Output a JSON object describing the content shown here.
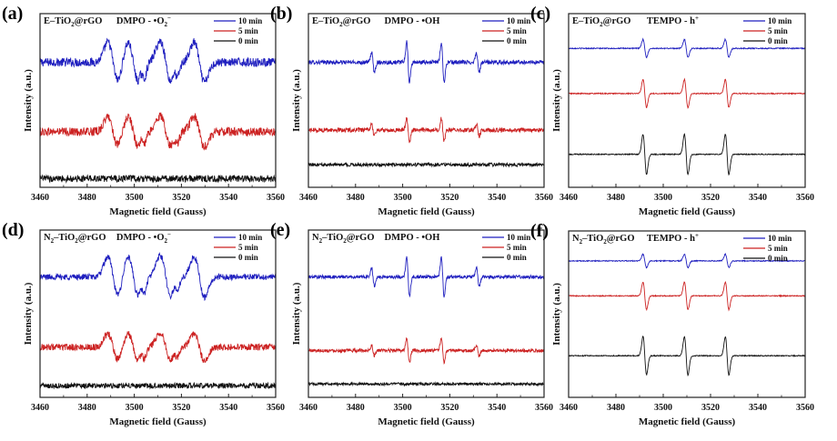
{
  "figure": {
    "panels": [
      "a",
      "b",
      "c",
      "d",
      "e",
      "f"
    ]
  },
  "chart_data": [
    {
      "id": "a",
      "type": "line",
      "panel_label": "(a)",
      "sample": {
        "prefix": "E",
        "formula_main": "TiO",
        "formula_sub": "2",
        "suffix": "@rGO"
      },
      "probe": {
        "text": "DMPO - •O",
        "sub": "2",
        "sup": "−"
      },
      "xlabel": "Magnetic field (Gauss)",
      "ylabel": "Intensity (a.u.)",
      "xlim": [
        3460,
        3560
      ],
      "xticks": [
        3460,
        3480,
        3500,
        3520,
        3540,
        3560
      ],
      "yticks_shown": false,
      "legend": {
        "position": "top-right",
        "entries": [
          "10 min",
          "5 min",
          "0 min"
        ]
      },
      "spectrum_type": "DMPO-superoxide",
      "series": [
        {
          "name": "10 min",
          "color": "#1f1fbf",
          "baseline_offset": 0.72,
          "amplitude": 1.0,
          "noise": 0.025,
          "peaks": [
            3490.8,
            3494.8,
            3500.0,
            3504.4,
            3513.6,
            3518.0,
            3527.4,
            3529.6
          ]
        },
        {
          "name": "5 min",
          "color": "#cc2222",
          "baseline_offset": 0.32,
          "amplitude": 0.75,
          "noise": 0.025,
          "peaks": [
            3490.8,
            3494.8,
            3500.0,
            3504.4,
            3513.6,
            3518.0,
            3527.4,
            3529.6
          ]
        },
        {
          "name": "0 min",
          "color": "#111111",
          "baseline_offset": 0.05,
          "amplitude": 0.0,
          "noise": 0.02,
          "peaks": []
        }
      ]
    },
    {
      "id": "b",
      "type": "line",
      "panel_label": "(b)",
      "sample": {
        "prefix": "E",
        "formula_main": "TiO",
        "formula_sub": "2",
        "suffix": "@rGO"
      },
      "probe": {
        "text": "DMPO - •OH",
        "sub": "",
        "sup": ""
      },
      "xlabel": "Magnetic field (Gauss)",
      "ylabel": "Intensity (a.u.)",
      "xlim": [
        3460,
        3560
      ],
      "xticks": [
        3460,
        3480,
        3500,
        3520,
        3540,
        3560
      ],
      "yticks_shown": false,
      "legend": {
        "position": "top-right",
        "entries": [
          "10 min",
          "5 min",
          "0 min"
        ]
      },
      "spectrum_type": "DMPO-OH",
      "series": [
        {
          "name": "10 min",
          "color": "#1f1fbf",
          "baseline_offset": 0.72,
          "amplitude": 1.0,
          "noise": 0.012,
          "lines": [
            [
              3487.4,
              0.5
            ],
            [
              3502.3,
              1.0
            ],
            [
              3517.0,
              1.0
            ],
            [
              3531.9,
              0.5
            ]
          ]
        },
        {
          "name": "5 min",
          "color": "#cc2222",
          "baseline_offset": 0.33,
          "amplitude": 0.58,
          "noise": 0.012,
          "lines": [
            [
              3487.4,
              0.5
            ],
            [
              3502.3,
              1.0
            ],
            [
              3517.0,
              1.0
            ],
            [
              3531.9,
              0.5
            ]
          ]
        },
        {
          "name": "0 min",
          "color": "#111111",
          "baseline_offset": 0.13,
          "amplitude": 0.0,
          "noise": 0.01,
          "lines": []
        }
      ]
    },
    {
      "id": "c",
      "type": "line",
      "panel_label": "(c)",
      "sample": {
        "prefix": "E",
        "formula_main": "TiO",
        "formula_sub": "2",
        "suffix": "@rGO"
      },
      "probe": {
        "text": "TEMPO - h",
        "sub": "",
        "sup": "+"
      },
      "xlabel": "Magnetic field (Gauss)",
      "ylabel": "Intensity (a.u.)",
      "xlim": [
        3460,
        3560
      ],
      "xticks": [
        3460,
        3480,
        3500,
        3520,
        3540,
        3560
      ],
      "yticks_shown": false,
      "legend": {
        "position": "top-right",
        "entries": [
          "10 min",
          "5 min",
          "0 min"
        ]
      },
      "spectrum_type": "TEMPO",
      "series": [
        {
          "name": "10 min",
          "color": "#1f1fbf",
          "baseline_offset": 0.8,
          "amplitude": 0.45,
          "noise": 0.003,
          "lines": [
            [
              3492.2,
              1.0
            ],
            [
              3509.7,
              1.0
            ],
            [
              3527.0,
              1.0
            ]
          ]
        },
        {
          "name": "5 min",
          "color": "#cc2222",
          "baseline_offset": 0.54,
          "amplitude": 0.7,
          "noise": 0.003,
          "lines": [
            [
              3492.2,
              1.0
            ],
            [
              3509.7,
              1.0
            ],
            [
              3527.0,
              1.0
            ]
          ]
        },
        {
          "name": "0 min",
          "color": "#111111",
          "baseline_offset": 0.19,
          "amplitude": 1.0,
          "noise": 0.003,
          "lines": [
            [
              3492.2,
              1.0
            ],
            [
              3509.7,
              1.0
            ],
            [
              3527.0,
              1.0
            ]
          ]
        }
      ]
    },
    {
      "id": "d",
      "type": "line",
      "panel_label": "(d)",
      "sample": {
        "prefix": "N",
        "prefix_sub": "2",
        "formula_main": "TiO",
        "formula_sub": "2",
        "suffix": "@rGO"
      },
      "probe": {
        "text": "DMPO - •O",
        "sub": "2",
        "sup": "−"
      },
      "xlabel": "Magnetic field (Gauss)",
      "ylabel": "Intensity (a.u.)",
      "xlim": [
        3460,
        3560
      ],
      "xticks": [
        3460,
        3480,
        3500,
        3520,
        3540,
        3560
      ],
      "yticks_shown": false,
      "legend": {
        "position": "top-right",
        "entries": [
          "10 min",
          "5 min",
          "0 min"
        ]
      },
      "spectrum_type": "DMPO-superoxide",
      "series": [
        {
          "name": "10 min",
          "color": "#1f1fbf",
          "baseline_offset": 0.72,
          "amplitude": 1.05,
          "noise": 0.018,
          "peaks": [
            3490.8,
            3494.8,
            3500.0,
            3504.4,
            3513.6,
            3518.0,
            3527.4,
            3529.6
          ]
        },
        {
          "name": "5 min",
          "color": "#cc2222",
          "baseline_offset": 0.3,
          "amplitude": 0.7,
          "noise": 0.02,
          "peaks": [
            3490.8,
            3494.8,
            3500.0,
            3504.4,
            3513.6,
            3518.0,
            3527.4,
            3529.6
          ]
        },
        {
          "name": "0 min",
          "color": "#111111",
          "baseline_offset": 0.07,
          "amplitude": 0.0,
          "noise": 0.016,
          "peaks": []
        }
      ]
    },
    {
      "id": "e",
      "type": "line",
      "panel_label": "(e)",
      "sample": {
        "prefix": "N",
        "prefix_sub": "2",
        "formula_main": "TiO",
        "formula_sub": "2",
        "suffix": "@rGO"
      },
      "probe": {
        "text": "DMPO - •OH",
        "sub": "",
        "sup": ""
      },
      "xlabel": "Magnetic field (Gauss)",
      "ylabel": "Intensity (a.u.)",
      "xlim": [
        3460,
        3560
      ],
      "xticks": [
        3460,
        3480,
        3500,
        3520,
        3540,
        3560
      ],
      "yticks_shown": false,
      "legend": {
        "position": "top-right",
        "entries": [
          "10 min",
          "5 min",
          "0 min"
        ]
      },
      "spectrum_type": "DMPO-OH",
      "series": [
        {
          "name": "10 min",
          "color": "#1f1fbf",
          "baseline_offset": 0.72,
          "amplitude": 1.0,
          "noise": 0.01,
          "lines": [
            [
              3487.4,
              0.48
            ],
            [
              3502.3,
              1.0
            ],
            [
              3517.0,
              1.0
            ],
            [
              3531.9,
              0.48
            ]
          ]
        },
        {
          "name": "5 min",
          "color": "#cc2222",
          "baseline_offset": 0.28,
          "amplitude": 0.62,
          "noise": 0.01,
          "lines": [
            [
              3487.4,
              0.45
            ],
            [
              3502.3,
              1.0
            ],
            [
              3517.0,
              1.0
            ],
            [
              3531.9,
              0.45
            ]
          ]
        },
        {
          "name": "0 min",
          "color": "#111111",
          "baseline_offset": 0.08,
          "amplitude": 0.0,
          "noise": 0.008,
          "lines": []
        }
      ]
    },
    {
      "id": "f",
      "type": "line",
      "panel_label": "(f)",
      "sample": {
        "prefix": "N",
        "prefix_sub": "2",
        "formula_main": "TiO",
        "formula_sub": "2",
        "suffix": "@rGO"
      },
      "probe": {
        "text": "TEMPO - h",
        "sub": "",
        "sup": "+"
      },
      "xlabel": "Magnetic field (Gauss)",
      "ylabel": "Intensity (a.u.)",
      "xlim": [
        3460,
        3560
      ],
      "xticks": [
        3460,
        3480,
        3500,
        3520,
        3540,
        3560
      ],
      "yticks_shown": false,
      "legend": {
        "position": "top-right",
        "entries": [
          "10 min",
          "5 min",
          "0 min"
        ]
      },
      "spectrum_type": "TEMPO",
      "series": [
        {
          "name": "10 min",
          "color": "#1f1fbf",
          "baseline_offset": 0.82,
          "amplitude": 0.35,
          "noise": 0.003,
          "lines": [
            [
              3492.2,
              1.0
            ],
            [
              3509.7,
              1.0
            ],
            [
              3527.0,
              1.0
            ]
          ]
        },
        {
          "name": "5 min",
          "color": "#cc2222",
          "baseline_offset": 0.61,
          "amplitude": 0.72,
          "noise": 0.003,
          "lines": [
            [
              3492.2,
              1.0
            ],
            [
              3509.7,
              1.0
            ],
            [
              3527.0,
              1.0
            ]
          ]
        },
        {
          "name": "0 min",
          "color": "#111111",
          "baseline_offset": 0.25,
          "amplitude": 1.0,
          "noise": 0.003,
          "lines": [
            [
              3492.2,
              1.0
            ],
            [
              3509.7,
              1.0
            ],
            [
              3527.0,
              1.0
            ]
          ]
        }
      ]
    }
  ]
}
